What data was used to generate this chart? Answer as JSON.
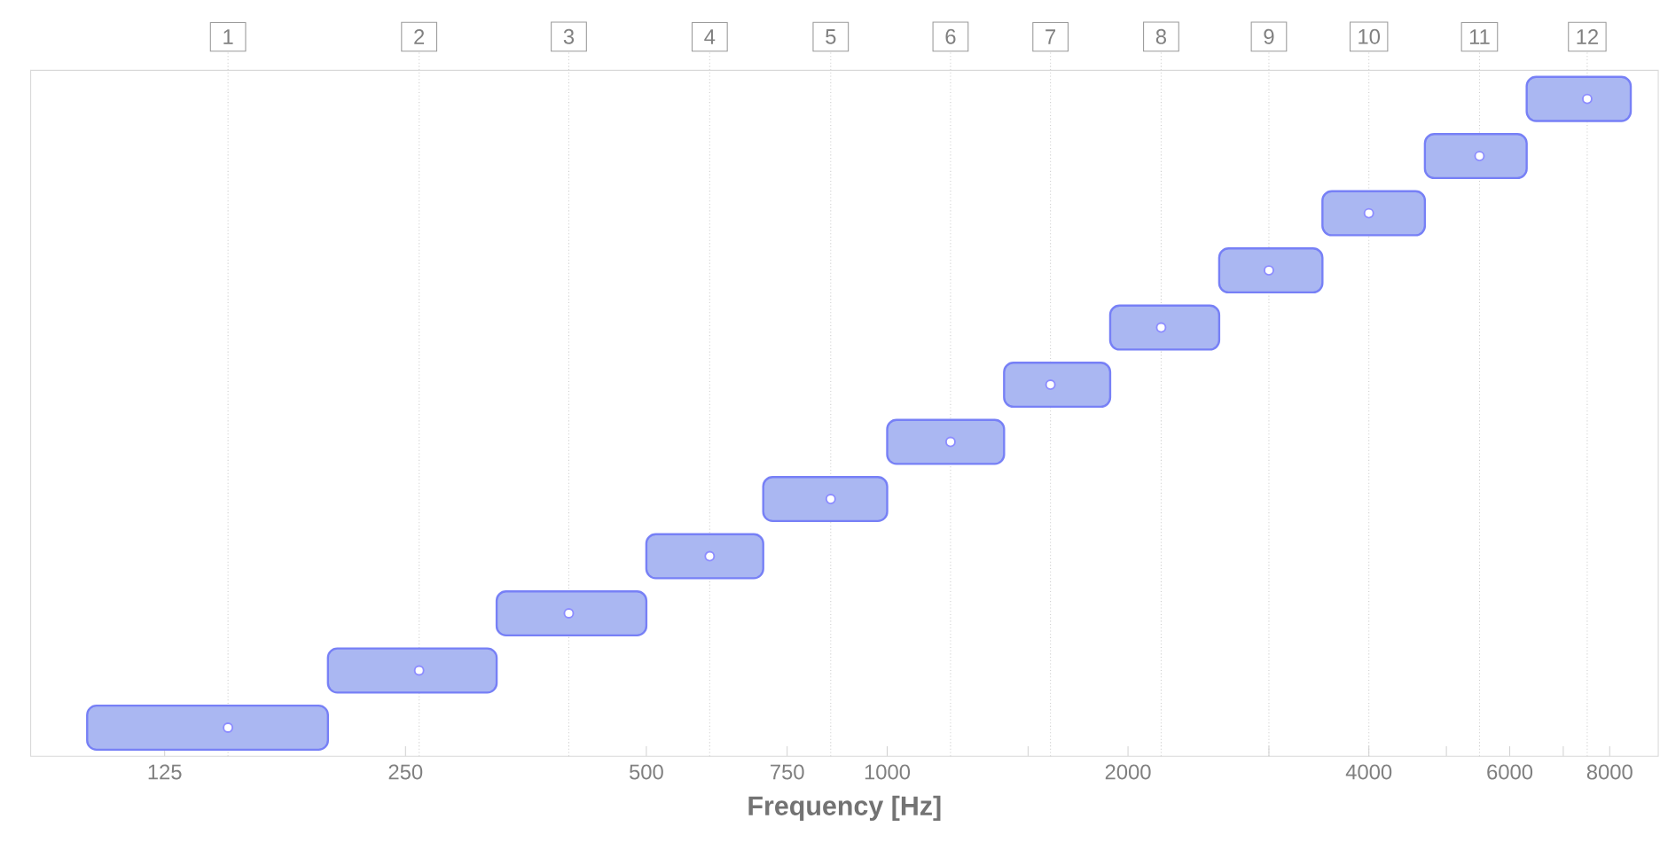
{
  "chart_data": {
    "type": "bar",
    "orientation": "horizontal",
    "log": "x",
    "xlabel": "Frequency [Hz]",
    "categories": [
      null,
      null,
      null,
      null,
      null,
      null,
      null,
      null,
      null,
      null,
      null,
      null
    ],
    "series": [
      {
        "color": "#aab7f2",
        "base": [
          6300,
          4700,
          3500,
          2600,
          1900,
          1400,
          1000,
          700,
          500,
          325,
          200,
          100
        ],
        "values": [
          2200,
          1600,
          1200,
          900,
          700,
          500,
          400,
          300,
          200,
          175,
          125,
          100
        ]
      },
      {
        "type": "scatter",
        "color": "#ffffff",
        "marker": "circle",
        "values": [
          7500,
          5500,
          4000,
          3000,
          2200,
          1600,
          1200,
          850,
          600,
          400,
          260,
          150
        ]
      }
    ],
    "xlim": [
      85,
      9200
    ],
    "xticks": [
      125,
      250,
      500,
      750,
      1000,
      {
        "value": 1500,
        "label": null
      },
      2000,
      {
        "value": 3000,
        "label": null
      },
      4000,
      {
        "value": 5000,
        "label": null
      },
      6000,
      {
        "value": 7000,
        "label": null
      },
      8000
    ],
    "annotations": [
      {
        "text": "1",
        "x": 150
      },
      {
        "text": "2",
        "x": 260
      },
      {
        "text": "3",
        "x": 400
      },
      {
        "text": "4",
        "x": 600
      },
      {
        "text": "5",
        "x": 850
      },
      {
        "text": "6",
        "x": 1200
      },
      {
        "text": "7",
        "x": 1600
      },
      {
        "text": "8",
        "x": 2200
      },
      {
        "text": "9",
        "x": 3000
      },
      {
        "text": "10",
        "x": 4000
      },
      {
        "text": "11",
        "x": 5500
      },
      {
        "text": "12",
        "x": 7500
      }
    ]
  }
}
